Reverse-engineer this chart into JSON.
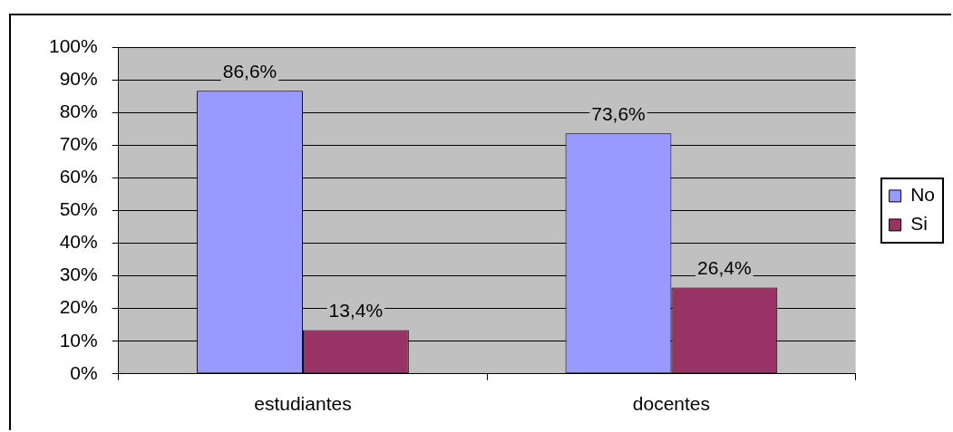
{
  "chart_data": {
    "type": "bar",
    "categories": [
      "estudiantes",
      "docentes"
    ],
    "series": [
      {
        "name": "No",
        "color": "#9999ff",
        "values": [
          86.6,
          73.6
        ],
        "value_labels": [
          "86,6%",
          "73,6%"
        ]
      },
      {
        "name": "Si",
        "color": "#993366",
        "values": [
          13.4,
          26.4
        ],
        "value_labels": [
          "13,4%",
          "26,4%"
        ]
      }
    ],
    "ylim": [
      0,
      100
    ],
    "yticks": [
      {
        "value": 0,
        "label": "0%"
      },
      {
        "value": 10,
        "label": "10%"
      },
      {
        "value": 20,
        "label": "20%"
      },
      {
        "value": 30,
        "label": "30%"
      },
      {
        "value": 40,
        "label": "40%"
      },
      {
        "value": 50,
        "label": "50%"
      },
      {
        "value": 60,
        "label": "60%"
      },
      {
        "value": 70,
        "label": "70%"
      },
      {
        "value": 80,
        "label": "80%"
      },
      {
        "value": 90,
        "label": "90%"
      },
      {
        "value": 100,
        "label": "100%"
      }
    ],
    "grid": "y",
    "legend": "right"
  }
}
